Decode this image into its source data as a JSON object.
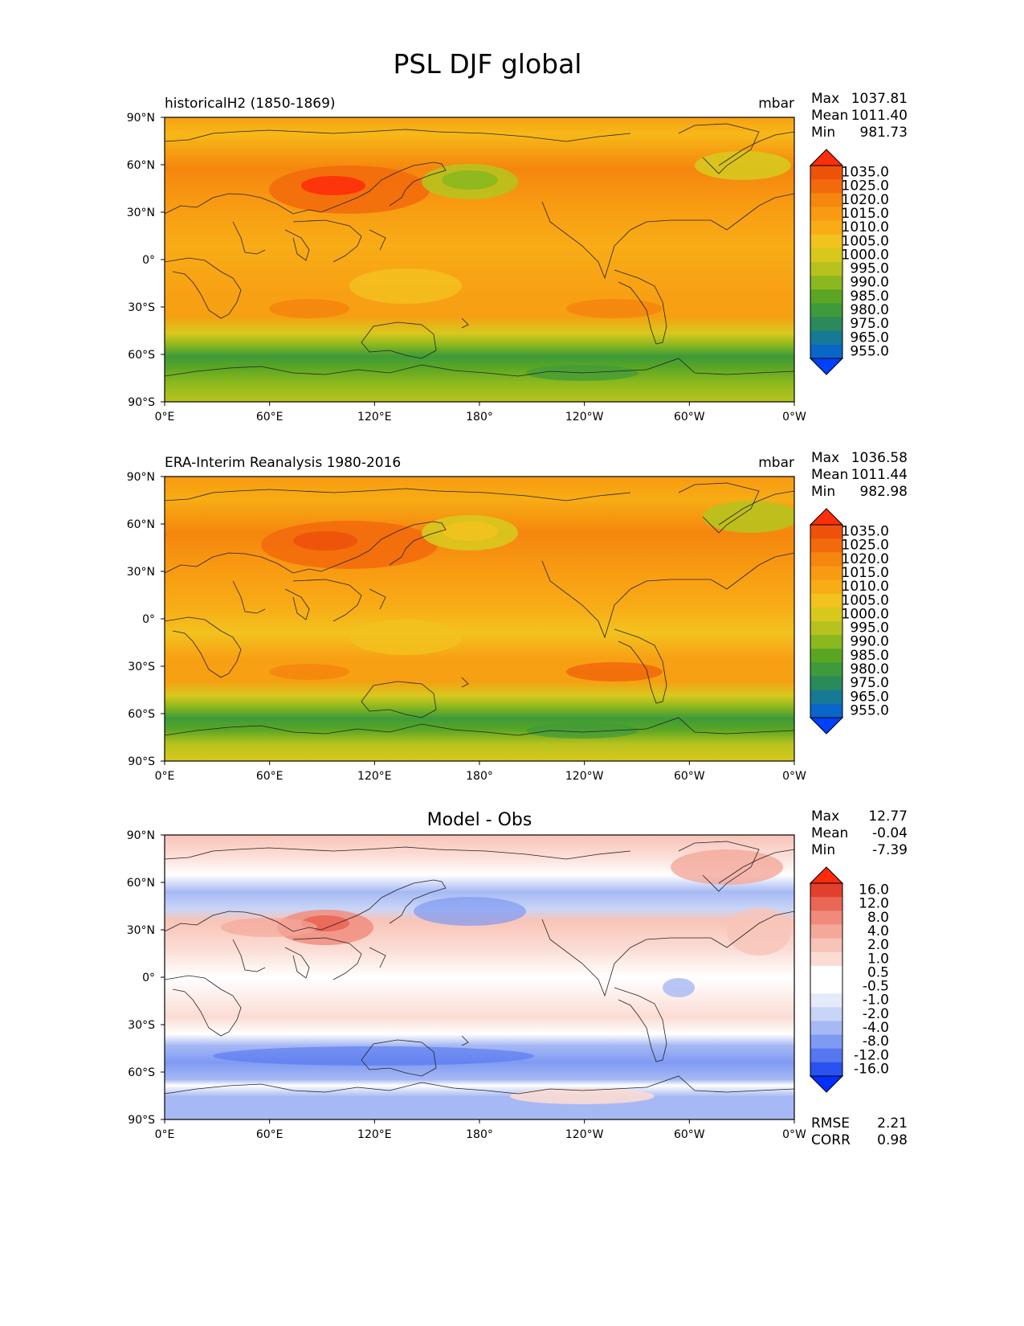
{
  "title": "PSL DJF global",
  "colors": {
    "psl_levels": [
      "#0040ff",
      "#0a66c8",
      "#167a96",
      "#2a8a5a",
      "#3e9a3a",
      "#5aa624",
      "#8ab81e",
      "#b8c21e",
      "#d8c81e",
      "#f2c21e",
      "#f8ac16",
      "#f89a12",
      "#f5860e",
      "#f26a0c",
      "#ee520a",
      "#ff2e0a"
    ],
    "diff_levels": [
      "#0030ff",
      "#2a52f0",
      "#5577f0",
      "#7f9af2",
      "#a6b9f4",
      "#c9d5f7",
      "#e4eaf9",
      "#ffffff",
      "#ffffff",
      "#fbdcd4",
      "#f8c4b8",
      "#f4a89a",
      "#f08a7c",
      "#ea6656",
      "#e2402e",
      "#ff2a0a"
    ]
  },
  "panels": [
    {
      "left_title": "historicalH2 (1850-1869)",
      "units": "mbar",
      "stats": [
        {
          "label": "Max",
          "value": "1037.81"
        },
        {
          "label": "Mean",
          "value": "1011.40"
        },
        {
          "label": "Min",
          "value": "981.73"
        }
      ],
      "colorbar_labels": [
        "1035.0",
        "1025.0",
        "1020.0",
        "1015.0",
        "1010.0",
        "1005.0",
        "1000.0",
        "995.0",
        "990.0",
        "985.0",
        "980.0",
        "975.0",
        "965.0",
        "955.0"
      ]
    },
    {
      "left_title": "ERA-Interim Reanalysis 1980-2016",
      "units": "mbar",
      "stats": [
        {
          "label": "Max",
          "value": "1036.58"
        },
        {
          "label": "Mean",
          "value": "1011.44"
        },
        {
          "label": "Min",
          "value": "982.98"
        }
      ],
      "colorbar_labels": [
        "1035.0",
        "1025.0",
        "1020.0",
        "1015.0",
        "1010.0",
        "1005.0",
        "1000.0",
        "995.0",
        "990.0",
        "985.0",
        "980.0",
        "975.0",
        "965.0",
        "955.0"
      ]
    },
    {
      "center_title": "Model - Obs",
      "stats": [
        {
          "label": "Max",
          "value": "12.77"
        },
        {
          "label": "Mean",
          "value": "-0.04"
        },
        {
          "label": "Min",
          "value": "-7.39"
        }
      ],
      "colorbar_labels": [
        "16.0",
        "12.0",
        "8.0",
        "4.0",
        "2.0",
        "1.0",
        "0.5",
        "-0.5",
        "-1.0",
        "-2.0",
        "-4.0",
        "-8.0",
        "-12.0",
        "-16.0"
      ],
      "metrics": [
        {
          "label": "RMSE",
          "value": "2.21"
        },
        {
          "label": "CORR",
          "value": "0.98"
        }
      ]
    }
  ],
  "chart_data": {
    "type": "heatmap",
    "title": "PSL DJF global",
    "x_ticks": [
      "0°E",
      "60°E",
      "120°E",
      "180°",
      "120°W",
      "60°W",
      "0°W"
    ],
    "y_ticks": [
      "90°N",
      "60°N",
      "30°N",
      "0°",
      "30°S",
      "60°S",
      "90°S"
    ],
    "xlim": [
      0,
      360
    ],
    "ylim": [
      -90,
      90
    ],
    "variable": "PSL",
    "season": "DJF",
    "units": "mbar"
  }
}
